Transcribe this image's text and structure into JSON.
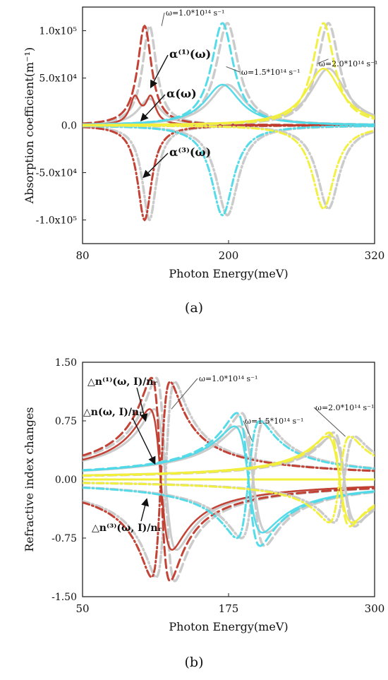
{
  "chart_data": [
    {
      "panel_label": "(a)",
      "type": "line",
      "xlabel": "Photon Energy(meV)",
      "ylabel": "Absorption coefficient(m⁻¹)",
      "xlim": [
        80,
        320
      ],
      "ylim": [
        -125000,
        125000
      ],
      "x_ticks": [
        {
          "value": 80,
          "label": "80"
        },
        {
          "value": 200,
          "label": "200"
        },
        {
          "value": 320,
          "label": "320"
        }
      ],
      "y_ticks": [
        {
          "value": 100000,
          "label": "1.0x10⁵"
        },
        {
          "value": 50000,
          "label": "5.0x10⁴"
        },
        {
          "value": 0,
          "label": "0.0"
        },
        {
          "value": -50000,
          "label": "-5.0x10⁴"
        },
        {
          "value": -100000,
          "label": "-1.0x10⁵"
        }
      ],
      "groups": [
        {
          "omega_label": "ω=1.0*10¹⁴ s⁻¹",
          "color": "#c0392b",
          "resonance_meV": 131,
          "width_meV": 7,
          "total_peak": 28000,
          "linear_peak": 105000,
          "third_order_peak": -100000
        },
        {
          "omega_label": "ω=1.5*10¹⁴ s⁻¹",
          "color": "#4dd9e8",
          "resonance_meV": 195,
          "width_meV": 11,
          "total_peak": 43000,
          "linear_peak": 108000,
          "third_order_peak": -95000
        },
        {
          "omega_label": "ω=2.0*10¹⁴ s⁻¹",
          "color": "#f2ef3a",
          "resonance_meV": 278,
          "width_meV": 11,
          "total_peak": 60000,
          "linear_peak": 108000,
          "third_order_peak": -88000
        }
      ],
      "annotations": [
        {
          "text": "α⁽¹⁾(ω)",
          "tip_x": 136,
          "tip_y": 40000
        },
        {
          "text": "α(ω)",
          "tip_x": 128,
          "tip_y": 5000
        },
        {
          "text": "α⁽³⁾(ω)",
          "tip_x": 130,
          "tip_y": -55000
        }
      ]
    },
    {
      "panel_label": "(b)",
      "type": "line",
      "xlabel": "Photon Energy(meV)",
      "ylabel": "Refractive index changes",
      "xlim": [
        50,
        300
      ],
      "ylim": [
        -1.5,
        1.5
      ],
      "x_ticks": [
        {
          "value": 50,
          "label": "50"
        },
        {
          "value": 175,
          "label": "175"
        },
        {
          "value": 300,
          "label": "300"
        }
      ],
      "y_ticks": [
        {
          "value": 1.5,
          "label": "1.50"
        },
        {
          "value": 0.75,
          "label": "0.75"
        },
        {
          "value": 0,
          "label": "0.00"
        },
        {
          "value": -0.75,
          "label": "-0.75"
        },
        {
          "value": -1.5,
          "label": "-1.50"
        }
      ],
      "groups": [
        {
          "omega_label": "ω=1.0*10¹⁴ s⁻¹",
          "color": "#c0392b",
          "resonance_meV": 117,
          "width_meV": 8,
          "linear_amp": 1.3,
          "total_amp": 0.9,
          "third_amp": -1.25
        },
        {
          "omega_label": "ω=1.5*10¹⁴ s⁻¹",
          "color": "#4dd9e8",
          "resonance_meV": 192,
          "width_meV": 10,
          "linear_amp": 0.85,
          "total_amp": 0.68,
          "third_amp": -0.75
        },
        {
          "omega_label": "ω=2.0*10¹⁴ s⁻¹",
          "color": "#f2ef3a",
          "resonance_meV": 270,
          "width_meV": 9,
          "linear_amp": 0.6,
          "total_amp": 0.55,
          "third_amp": -0.55
        }
      ],
      "annotations": [
        {
          "text": "△n⁽¹⁾(ω, I)/nᵣ",
          "tip_x": 104,
          "tip_y": 0.75
        },
        {
          "text": "△n(ω, I)/nᵣ",
          "tip_x": 112,
          "tip_y": 0.2
        },
        {
          "text": "△n⁽³⁾(ω, I)/nᵣ",
          "tip_x": 105,
          "tip_y": -0.25
        }
      ]
    }
  ]
}
